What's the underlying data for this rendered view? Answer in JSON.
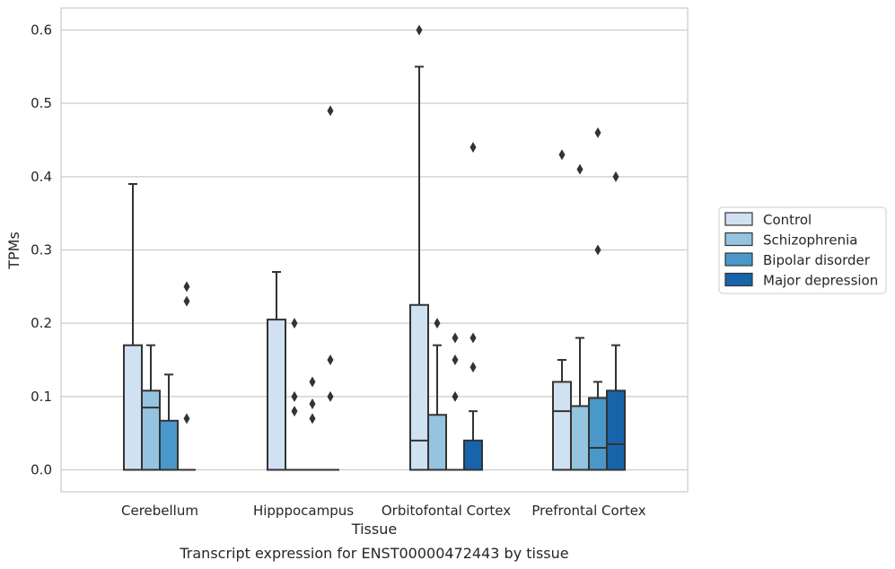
{
  "chart_data": {
    "type": "box",
    "caption": "Transcript expression for ENST00000472443 by tissue",
    "xlabel": "Tissue",
    "ylabel": "TPMs",
    "ylim": [
      -0.03,
      0.63
    ],
    "yticks": [
      0.0,
      0.1,
      0.2,
      0.3,
      0.4,
      0.5,
      0.6
    ],
    "ytick_labels": [
      "0.0",
      "0.1",
      "0.2",
      "0.3",
      "0.4",
      "0.5",
      "0.6"
    ],
    "grid": true,
    "legend_placement": "right-outside",
    "categories": [
      "Cerebellum",
      "Hipppocampus",
      "Orbitofontal Cortex",
      "Prefrontal Cortex"
    ],
    "series": [
      {
        "name": "Control",
        "color": "#d0e1f2",
        "boxes": [
          {
            "q1": 0.0,
            "median": 0.0,
            "q3": 0.17,
            "whisker_low": 0.0,
            "whisker_high": 0.39,
            "outliers": []
          },
          {
            "q1": 0.0,
            "median": 0.0,
            "q3": 0.205,
            "whisker_low": 0.0,
            "whisker_high": 0.27,
            "outliers": []
          },
          {
            "q1": 0.0,
            "median": 0.04,
            "q3": 0.225,
            "whisker_low": 0.0,
            "whisker_high": 0.55,
            "outliers": [
              0.6
            ]
          },
          {
            "q1": 0.0,
            "median": 0.08,
            "q3": 0.12,
            "whisker_low": 0.0,
            "whisker_high": 0.15,
            "outliers": [
              0.43
            ]
          }
        ]
      },
      {
        "name": "Schizophrenia",
        "color": "#94c4df",
        "boxes": [
          {
            "q1": 0.0,
            "median": 0.085,
            "q3": 0.108,
            "whisker_low": 0.0,
            "whisker_high": 0.17,
            "outliers": []
          },
          {
            "q1": 0.0,
            "median": 0.0,
            "q3": 0.0,
            "whisker_low": 0.0,
            "whisker_high": 0.0,
            "outliers": [
              0.2,
              0.1,
              0.08
            ]
          },
          {
            "q1": 0.0,
            "median": 0.0,
            "q3": 0.075,
            "whisker_low": 0.0,
            "whisker_high": 0.17,
            "outliers": [
              0.2
            ]
          },
          {
            "q1": 0.0,
            "median": 0.0,
            "q3": 0.087,
            "whisker_low": 0.0,
            "whisker_high": 0.18,
            "outliers": [
              0.41
            ]
          }
        ]
      },
      {
        "name": "Bipolar disorder",
        "color": "#4a98c9",
        "boxes": [
          {
            "q1": 0.0,
            "median": 0.0,
            "q3": 0.067,
            "whisker_low": 0.0,
            "whisker_high": 0.13,
            "outliers": []
          },
          {
            "q1": 0.0,
            "median": 0.0,
            "q3": 0.0,
            "whisker_low": 0.0,
            "whisker_high": 0.0,
            "outliers": [
              0.12,
              0.09,
              0.07
            ]
          },
          {
            "q1": 0.0,
            "median": 0.0,
            "q3": 0.0,
            "whisker_low": 0.0,
            "whisker_high": 0.0,
            "outliers": [
              0.18,
              0.15,
              0.1
            ]
          },
          {
            "q1": 0.0,
            "median": 0.03,
            "q3": 0.098,
            "whisker_low": 0.0,
            "whisker_high": 0.12,
            "outliers": [
              0.46,
              0.3
            ]
          }
        ]
      },
      {
        "name": "Major depression",
        "color": "#1764ab",
        "boxes": [
          {
            "q1": 0.0,
            "median": 0.0,
            "q3": 0.0,
            "whisker_low": 0.0,
            "whisker_high": 0.0,
            "outliers": [
              0.25,
              0.23,
              0.07
            ]
          },
          {
            "q1": 0.0,
            "median": 0.0,
            "q3": 0.0,
            "whisker_low": 0.0,
            "whisker_high": 0.0,
            "outliers": [
              0.49,
              0.15,
              0.1
            ]
          },
          {
            "q1": 0.0,
            "median": 0.0,
            "q3": 0.04,
            "whisker_low": 0.0,
            "whisker_high": 0.08,
            "outliers": [
              0.44,
              0.18,
              0.14
            ]
          },
          {
            "q1": 0.0,
            "median": 0.035,
            "q3": 0.108,
            "whisker_low": 0.0,
            "whisker_high": 0.17,
            "outliers": [
              0.4
            ]
          }
        ]
      }
    ]
  }
}
